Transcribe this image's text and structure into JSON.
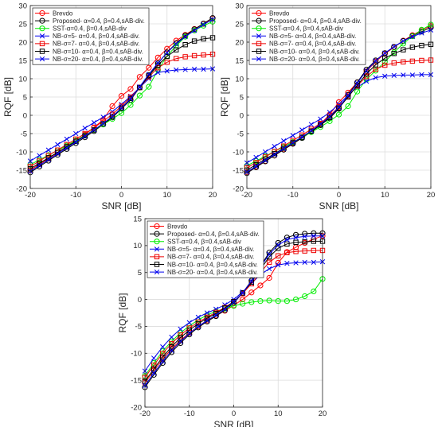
{
  "figure": {
    "legend_location": "top-left",
    "grid": true,
    "colors": {
      "Brevdo": "#ff0000",
      "Proposed": "#000000",
      "SST": "#00ee00",
      "NB5": "#0000ee",
      "NB7": "#ee0000",
      "NB10": "#000000",
      "NB20": "#0000ee"
    }
  },
  "chart_data": [
    {
      "type": "line",
      "xlabel": "SNR [dB]",
      "ylabel": "RQF [dB]",
      "xlim": [
        -20,
        20
      ],
      "ylim": [
        -20,
        30
      ],
      "xticks": [
        -20,
        -10,
        0,
        10,
        20
      ],
      "yticks": [
        -20,
        -15,
        -10,
        -5,
        0,
        5,
        10,
        15,
        20,
        25,
        30
      ],
      "x": [
        -20,
        -18,
        -16,
        -14,
        -12,
        -10,
        -8,
        -6,
        -4,
        -2,
        0,
        2,
        4,
        6,
        8,
        10,
        12,
        14,
        16,
        18,
        20
      ],
      "series": [
        {
          "name": "Brevdo",
          "marker": "circle",
          "color": "#ff0000",
          "values": [
            -15,
            -13.4,
            -11.8,
            -10.2,
            -8.6,
            -7,
            -5.3,
            -3.3,
            -1.2,
            2.5,
            5.3,
            7.2,
            10.5,
            13,
            15.8,
            18.2,
            20.4,
            22,
            23.6,
            25,
            26.5
          ]
        },
        {
          "name": "Proposed- α=0.4,  β=0.4,sAB-div.",
          "marker": "circle",
          "color": "#000000",
          "values": [
            -15.6,
            -14,
            -12.4,
            -10.8,
            -9.2,
            -7.6,
            -6,
            -4.3,
            -2.5,
            -0.6,
            1.8,
            4.2,
            7.6,
            11,
            14.2,
            17.2,
            19.7,
            21.8,
            23.5,
            25.1,
            26.6
          ]
        },
        {
          "name": "SST-α=0.4,  β=0.4,sAB-div",
          "marker": "circle",
          "color": "#00ee00",
          "values": [
            -13.5,
            -12.2,
            -10.9,
            -9.6,
            -8.3,
            -6.9,
            -5.5,
            -4,
            -2.5,
            -1,
            0.6,
            2.8,
            5.4,
            7.8,
            12.4,
            16.2,
            19,
            21.5,
            23.2,
            24.5,
            25.6
          ]
        },
        {
          "name": "NB-σ=5-  α=0.4,  β=0.4,sAB-div.",
          "marker": "x",
          "color": "#0000ee",
          "values": [
            -12.5,
            -11,
            -9.5,
            -8,
            -6.5,
            -5,
            -3.5,
            -2,
            -0.5,
            1,
            3,
            5.2,
            7.6,
            10,
            11.7,
            12.1,
            12.4,
            12.5,
            12.6,
            12.6,
            12.7
          ]
        },
        {
          "name": "NB-σ=7-  α=0.4,  β=0.4,sAB-div.",
          "marker": "square",
          "color": "#ee0000",
          "values": [
            -14,
            -12.5,
            -11,
            -9.5,
            -8,
            -6.5,
            -5,
            -3.4,
            -1.6,
            0.3,
            2.5,
            5,
            7.6,
            10.5,
            13,
            14.5,
            15.5,
            16,
            16.3,
            16.5,
            16.7
          ]
        },
        {
          "name": "NB-σ=10-  α=0.4,  β=0.4,sAB-div.",
          "marker": "square",
          "color": "#000000",
          "values": [
            -14.6,
            -13.1,
            -11.6,
            -10.1,
            -8.6,
            -7.1,
            -5.6,
            -4,
            -2.3,
            -0.4,
            2,
            4.6,
            7.6,
            10.8,
            13.7,
            16.1,
            17.9,
            19.3,
            20.3,
            20.9,
            21.2
          ]
        },
        {
          "name": "NB-σ=20-  α=0.4,  β=0.4,sAB-div.",
          "marker": "x",
          "color": "#0000ee",
          "values": [
            -15.3,
            -13.7,
            -12.1,
            -10.5,
            -8.9,
            -7.3,
            -5.7,
            -4,
            -2.2,
            -0.3,
            2,
            4.5,
            7.8,
            11.2,
            14.3,
            17.1,
            19.5,
            21.5,
            23.2,
            24.8,
            26.2
          ]
        }
      ]
    },
    {
      "type": "line",
      "xlabel": "SNR [dB]",
      "ylabel": "RQF [dB]",
      "xlim": [
        -20,
        20
      ],
      "ylim": [
        -20,
        30
      ],
      "xticks": [
        -20,
        -10,
        0,
        10,
        20
      ],
      "yticks": [
        -20,
        -15,
        -10,
        -5,
        0,
        5,
        10,
        15,
        20,
        25,
        30
      ],
      "x": [
        -20,
        -18,
        -16,
        -14,
        -12,
        -10,
        -8,
        -6,
        -4,
        -2,
        0,
        2,
        4,
        6,
        8,
        10,
        12,
        14,
        16,
        18,
        20
      ],
      "series": [
        {
          "name": "Brevdo",
          "marker": "circle",
          "color": "#ff0000",
          "values": [
            -15.5,
            -14,
            -12.5,
            -11,
            -9.3,
            -7.7,
            -6,
            -4.3,
            -2.4,
            0.2,
            3.6,
            6.2,
            9,
            12,
            14.7,
            16.8,
            18.6,
            20.4,
            21.9,
            23.3,
            24.4
          ]
        },
        {
          "name": "Proposed- α=0.4,  β=0.4,sAB-div.",
          "marker": "circle",
          "color": "#000000",
          "values": [
            -15.8,
            -14.2,
            -12.6,
            -11,
            -9.4,
            -7.8,
            -6.2,
            -4.5,
            -2.7,
            -0.8,
            1.8,
            5.6,
            9,
            12.5,
            15,
            17,
            18.7,
            20.3,
            21.7,
            22.9,
            24
          ]
        },
        {
          "name": "SST-α=0.4,  β=0.4,sAB-div",
          "marker": "circle",
          "color": "#00ee00",
          "values": [
            -13.8,
            -12.5,
            -11.2,
            -9.9,
            -8.6,
            -7.3,
            -6,
            -4.6,
            -3.2,
            -1.6,
            0.2,
            2.5,
            6.5,
            9.8,
            12.2,
            14.6,
            17.2,
            19.6,
            21.6,
            23.4,
            24.8
          ]
        },
        {
          "name": "NB-σ=5-  α=0.4,  β=0.4,sAB-div.",
          "marker": "x",
          "color": "#0000ee",
          "values": [
            -13,
            -11.5,
            -10,
            -8.5,
            -7,
            -5.5,
            -4,
            -2.5,
            -1,
            0.8,
            3,
            5.5,
            7.7,
            9.3,
            10.3,
            10.7,
            10.9,
            11,
            11,
            11.1,
            11.1
          ]
        },
        {
          "name": "NB-σ=7-  α=0.4,  β=0.4,sAB-div.",
          "marker": "square",
          "color": "#ee0000",
          "values": [
            -14.4,
            -12.9,
            -11.4,
            -9.9,
            -8.4,
            -6.9,
            -5.4,
            -3.8,
            -2.2,
            -0.2,
            2.3,
            5.2,
            8,
            10.6,
            12.6,
            13.7,
            14.3,
            14.6,
            14.8,
            15,
            15.1
          ]
        },
        {
          "name": "NB-σ=10-  α=0.4,  β=0.4,sAB-div.",
          "marker": "square",
          "color": "#000000",
          "values": [
            -15,
            -13.5,
            -12,
            -10.5,
            -9,
            -7.5,
            -6,
            -4.3,
            -2.6,
            -0.6,
            2,
            5,
            8.2,
            11.3,
            13.8,
            15.6,
            16.9,
            17.9,
            18.6,
            19.1,
            19.4
          ]
        },
        {
          "name": "NB-σ=20-  α=0.4,  β=0.4,sAB-div.",
          "marker": "x",
          "color": "#0000ee",
          "values": [
            -15.5,
            -13.9,
            -12.3,
            -10.7,
            -9.1,
            -7.5,
            -5.9,
            -4.2,
            -2.4,
            -0.4,
            2.2,
            5.4,
            8.8,
            12.2,
            14.9,
            17,
            18.8,
            20.3,
            21.5,
            22.5,
            23.3
          ]
        }
      ]
    },
    {
      "type": "line",
      "xlabel": "SNR [dB]",
      "ylabel": "RQF [dB]",
      "xlim": [
        -20,
        20
      ],
      "ylim": [
        -20,
        15
      ],
      "xticks": [
        -20,
        -10,
        0,
        10,
        20
      ],
      "yticks": [
        -20,
        -15,
        -10,
        -5,
        0,
        5,
        10,
        15
      ],
      "x": [
        -20,
        -18,
        -16,
        -14,
        -12,
        -10,
        -8,
        -6,
        -4,
        -2,
        0,
        2,
        4,
        6,
        8,
        10,
        12,
        14,
        16,
        18,
        20
      ],
      "series": [
        {
          "name": "Brevdo",
          "marker": "circle",
          "color": "#ff0000",
          "values": [
            -15.5,
            -13.2,
            -11.1,
            -9.2,
            -7.6,
            -6.2,
            -5,
            -3.9,
            -3,
            -2.1,
            -1.1,
            0,
            1.3,
            2.6,
            4,
            6.8,
            8.8,
            9.7,
            10.5,
            11.2,
            11.8
          ]
        },
        {
          "name": "Proposed- α=0.4,  β=0.4,sAB-div.",
          "marker": "circle",
          "color": "#000000",
          "values": [
            -16.3,
            -14,
            -11.8,
            -9.8,
            -8.1,
            -6.5,
            -5.2,
            -4.1,
            -3.1,
            -2,
            -0.7,
            1.2,
            3.5,
            6.2,
            8.7,
            10.5,
            11.5,
            12,
            12.2,
            12.3,
            12.3
          ]
        },
        {
          "name": "SST-α=0.4,  β=0.4,sAB-div",
          "marker": "circle",
          "color": "#00ee00",
          "values": [
            -14.2,
            -11.8,
            -9.6,
            -7.8,
            -6.2,
            -4.9,
            -3.8,
            -2.9,
            -2.2,
            -1.7,
            -1.2,
            -0.8,
            -0.5,
            -0.3,
            -0.2,
            -0.3,
            -0.3,
            0,
            0.6,
            1.5,
            3.8
          ]
        },
        {
          "name": "NB-σ=5-  α=0.4,  β=0.4,sAB-div.",
          "marker": "x",
          "color": "#0000ee",
          "values": [
            -13.3,
            -10.9,
            -8.8,
            -7,
            -5.5,
            -4.3,
            -3.3,
            -2.5,
            -1.8,
            -1,
            0,
            1.4,
            3,
            4.6,
            5.7,
            6.4,
            6.7,
            6.8,
            6.9,
            6.9,
            7
          ]
        },
        {
          "name": "NB-σ=7-  α=0.4,  β=0.4,sAB-div.",
          "marker": "square",
          "color": "#ee0000",
          "values": [
            -14.5,
            -12.2,
            -10,
            -8.2,
            -6.6,
            -5.3,
            -4.2,
            -3.3,
            -2.4,
            -1.5,
            -0.4,
            1.1,
            2.9,
            5,
            6.9,
            8.1,
            8.7,
            8.9,
            9,
            9.1,
            9.1
          ]
        },
        {
          "name": "NB-σ=10-  α=0.4,  β=0.4,sAB-div.",
          "marker": "square",
          "color": "#000000",
          "values": [
            -15.2,
            -12.9,
            -10.7,
            -8.8,
            -7.1,
            -5.7,
            -4.5,
            -3.5,
            -2.6,
            -1.6,
            -0.4,
            1.2,
            3.2,
            5.6,
            7.9,
            9.5,
            10.3,
            10.6,
            10.7,
            10.8,
            10.8
          ]
        },
        {
          "name": "NB-σ=20-  α=0.4,  β=0.4,sAB-div.",
          "marker": "x",
          "color": "#0000ee",
          "values": [
            -16,
            -13.7,
            -11.5,
            -9.5,
            -7.8,
            -6.3,
            -5,
            -3.9,
            -2.9,
            -1.8,
            -0.5,
            1.2,
            3.4,
            6,
            8.4,
            10.1,
            11.1,
            11.5,
            11.7,
            11.8,
            11.8
          ]
        }
      ]
    }
  ]
}
